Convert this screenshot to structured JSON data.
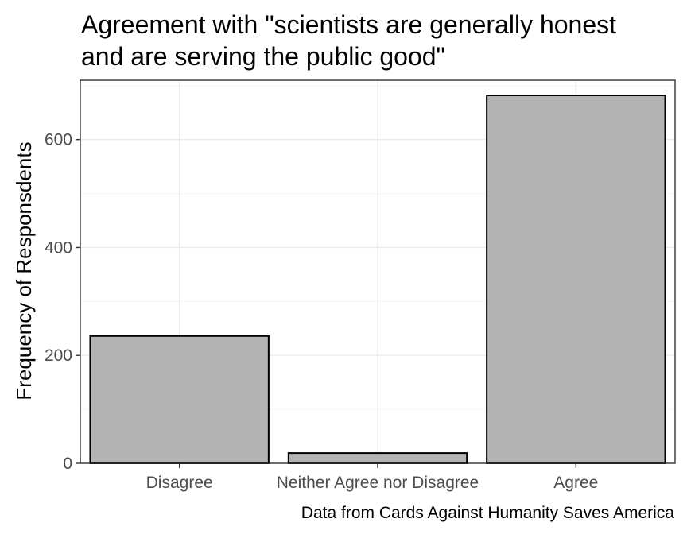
{
  "chart_data": {
    "type": "bar",
    "title_lines": [
      "Agreement with \"scientists are generally honest",
      "and are serving the public good\""
    ],
    "xlabel": "",
    "ylabel": "Frequency of Responsdents",
    "caption": "Data from Cards Against Humanity Saves America",
    "categories": [
      "Disagree",
      "Neither Agree nor Disagree",
      "Agree"
    ],
    "values": [
      236,
      19,
      682
    ],
    "ylim": [
      0,
      710
    ],
    "yticks": [
      0,
      200,
      400,
      600
    ],
    "grid": true,
    "legend": "none",
    "colors": {
      "bar_fill": "#b3b3b3",
      "bar_stroke": "#000000",
      "grid_major": "#ebebeb",
      "grid_minor": "#f5f5f5",
      "panel_border": "#333333",
      "tick_text": "#4d4d4d"
    }
  }
}
